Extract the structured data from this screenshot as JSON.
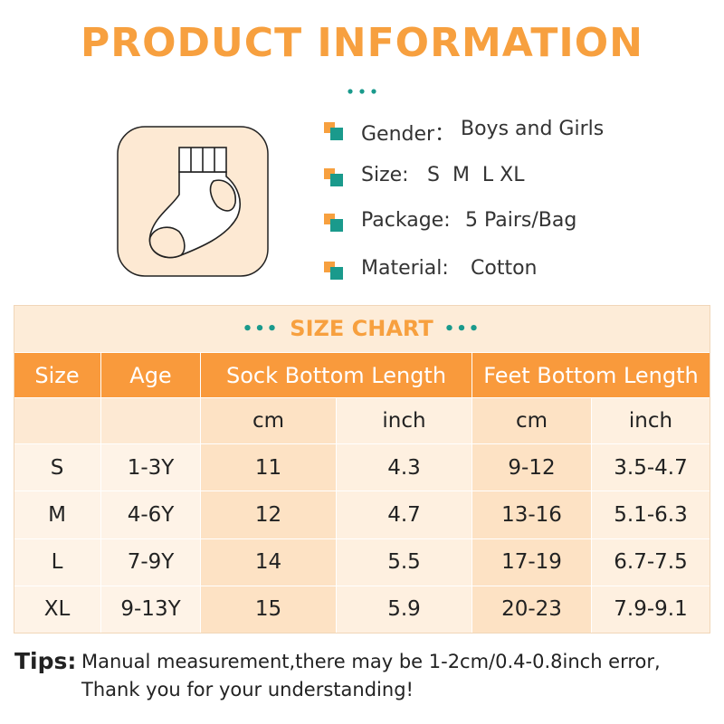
{
  "title": "PRODUCT INFORMATION",
  "info": [
    {
      "label": "Gender：",
      "value": "Boys and Girls"
    },
    {
      "label": "Size:",
      "value": "S  M  L XL"
    },
    {
      "label": "Package:",
      "value": "5 Pairs/Bag"
    },
    {
      "label": "Material:",
      "value": "Cotton"
    }
  ],
  "size_chart": {
    "title": "SIZE CHART",
    "header": [
      "Size",
      "Age",
      "Sock Bottom Length",
      "Feet Bottom Length"
    ],
    "units": [
      "cm",
      "inch",
      "cm",
      "inch"
    ],
    "rows": [
      [
        "S",
        "1-3Y",
        "11",
        "4.3",
        "9-12",
        "3.5-4.7"
      ],
      [
        "M",
        "4-6Y",
        "12",
        "4.7",
        "13-16",
        "5.1-6.3"
      ],
      [
        "L",
        "7-9Y",
        "14",
        "5.5",
        "17-19",
        "6.7-7.5"
      ],
      [
        "XL",
        "9-13Y",
        "15",
        "5.9",
        "20-23",
        "7.9-9.1"
      ]
    ]
  },
  "tips": {
    "label": "Tips:",
    "lines": [
      "Manual measurement,there may be 1-2cm/0.4-0.8inch error,",
      "Thank you for your understanding!"
    ]
  }
}
